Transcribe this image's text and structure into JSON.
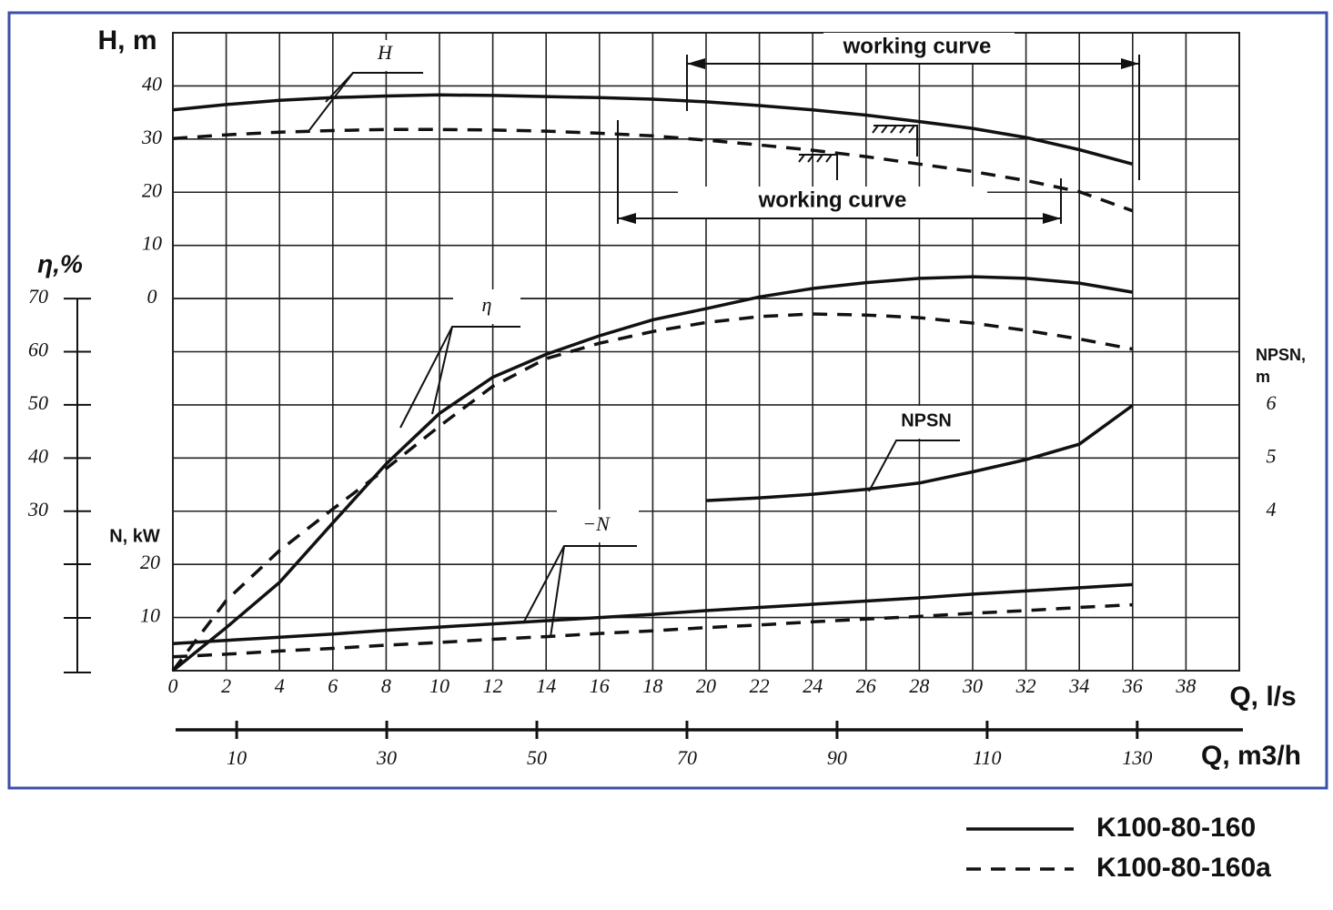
{
  "chart_data": {
    "type": "line",
    "x_label": "Q, l/s",
    "x": [
      0,
      2,
      4,
      6,
      8,
      10,
      12,
      14,
      16,
      18,
      20,
      22,
      24,
      26,
      28,
      30,
      32,
      34,
      36
    ],
    "xlim": [
      0,
      40
    ],
    "xticks": [
      0,
      2,
      4,
      6,
      8,
      10,
      12,
      14,
      16,
      18,
      20,
      22,
      24,
      26,
      28,
      30,
      32,
      34,
      36,
      38
    ],
    "x2_label": "Q, m3/h",
    "x2lim": [
      1.5,
      143.6
    ],
    "x2ticks": [
      10,
      30,
      50,
      70,
      90,
      110,
      130
    ],
    "grid": true,
    "y_axes": [
      {
        "label": "H, m",
        "ylim": [
          -70,
          50
        ],
        "yticks": [
          0,
          10,
          20,
          30,
          40
        ],
        "curve_label": "H",
        "series": [
          {
            "values": [
              35.5,
              36.5,
              37.3,
              37.8,
              38.1,
              38.3,
              38.2,
              38.0,
              37.8,
              37.5,
              37.0,
              36.3,
              35.5,
              34.5,
              33.3,
              32.0,
              30.3,
              28.0,
              25.3
            ]
          },
          {
            "values": [
              30.1,
              30.8,
              31.3,
              31.6,
              31.8,
              31.8,
              31.7,
              31.5,
              31.1,
              30.6,
              29.8,
              28.9,
              27.9,
              26.7,
              25.3,
              23.9,
              22.2,
              20.1,
              16.5
            ]
          }
        ]
      },
      {
        "label": "η,%",
        "ylim": [
          0,
          120
        ],
        "yticks": [
          30,
          40,
          50,
          60,
          70
        ],
        "curve_label": "η",
        "series": [
          {
            "values": [
              0,
              8.1,
              16.6,
              27.8,
              38.9,
              48.4,
              55.2,
              59.5,
              63.0,
              66.0,
              68.1,
              70.3,
              71.9,
              73.0,
              73.8,
              74.1,
              73.8,
              72.9,
              71.2
            ]
          },
          {
            "values": [
              0,
              13.2,
              22.6,
              30.4,
              38.0,
              46.0,
              53.5,
              58.7,
              61.6,
              63.8,
              65.5,
              66.6,
              67.1,
              66.9,
              66.4,
              65.4,
              64.0,
              62.4,
              60.5
            ]
          }
        ]
      },
      {
        "label": "N, kW",
        "ylim": [
          0,
          120
        ],
        "yticks": [
          10,
          20
        ],
        "curve_label": "−N",
        "series": [
          {
            "values": [
              5.1,
              5.7,
              6.3,
              6.9,
              7.6,
              8.2,
              8.8,
              9.4,
              10.0,
              10.6,
              11.3,
              11.9,
              12.5,
              13.1,
              13.7,
              14.4,
              15.0,
              15.6,
              16.2
            ]
          },
          {
            "values": [
              2.6,
              3.1,
              3.7,
              4.2,
              4.8,
              5.3,
              5.9,
              6.4,
              7.0,
              7.5,
              8.1,
              8.6,
              9.2,
              9.7,
              10.2,
              10.8,
              11.3,
              11.9,
              12.4
            ]
          }
        ]
      },
      {
        "label": "NPSN, m",
        "ylim": [
          1,
          13
        ],
        "yticks": [
          4,
          5,
          6
        ],
        "curve_label": "NPSN",
        "series": [
          {
            "values": [
              null,
              null,
              null,
              null,
              null,
              null,
              null,
              null,
              null,
              null,
              4.2,
              4.25,
              4.32,
              4.41,
              4.53,
              4.74,
              4.97,
              5.26,
              5.99
            ]
          }
        ]
      }
    ],
    "annotations": [
      "working curve",
      "working curve"
    ],
    "legend": [
      {
        "name": "K100-80-160",
        "dash": false
      },
      {
        "name": "K100-80-160a",
        "dash": true
      }
    ]
  }
}
